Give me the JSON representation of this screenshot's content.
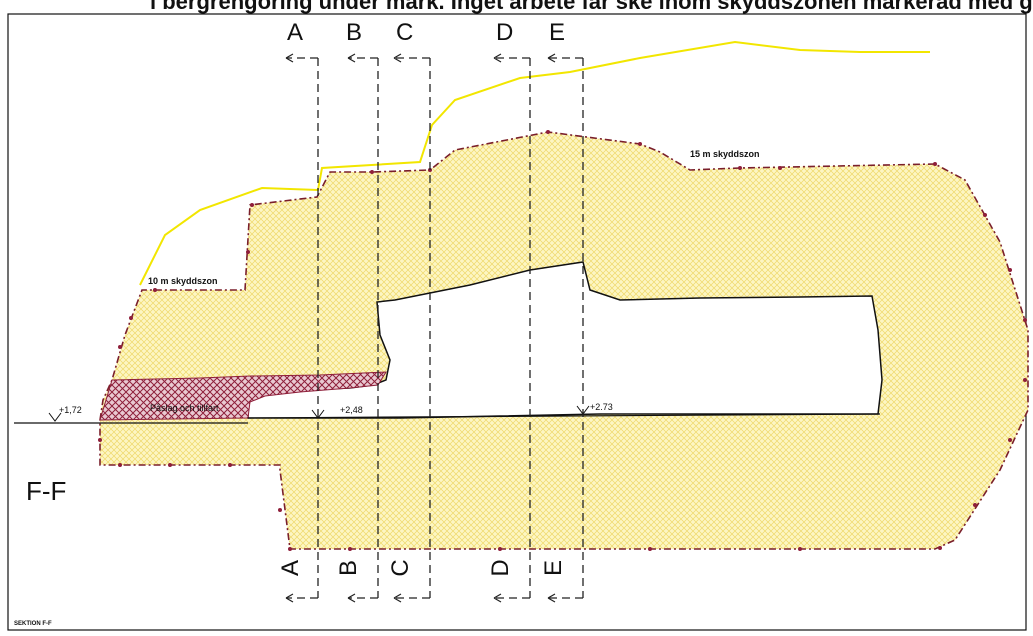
{
  "title_partial": "l bergrengöring under mark. Inget arbete får ske inom skyddszonen markerad med gult samt dess yttre anslutningar till markytan samt två höjder",
  "section_markers": [
    "A",
    "B",
    "C",
    "D",
    "E"
  ],
  "section_title": "F-F",
  "zone_labels": {
    "zone_15m": "15 m skyddszon",
    "zone_10m": "10 m skyddszon"
  },
  "levels": {
    "left": "+1,72",
    "middle": "+2,48",
    "right": "+2.73"
  },
  "hatched_area_label": "Påslag och tillfart",
  "footer": "SEKTION F-F",
  "colors": {
    "zone_fill": "#fdf6c3",
    "zone_hatch": "#efd96a",
    "boundary": "#7a1f2b",
    "terrain": "#f2e600",
    "hatch_red": "#8e1f3a"
  }
}
